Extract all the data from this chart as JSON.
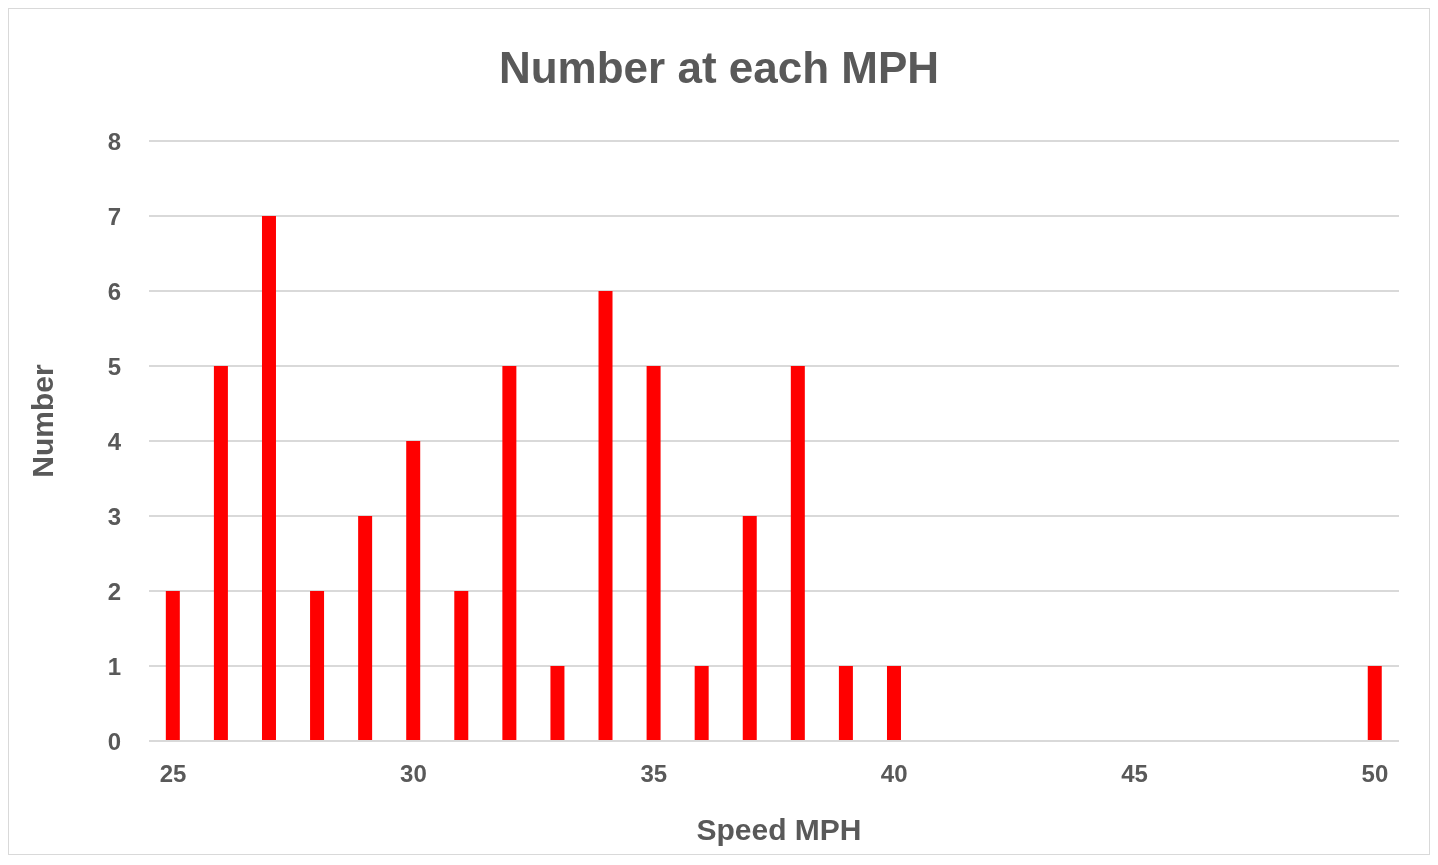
{
  "chart_data": {
    "type": "bar",
    "title": "Number at each MPH",
    "xlabel": "Speed MPH",
    "ylabel": "Number",
    "categories": [
      "25",
      null,
      null,
      null,
      null,
      "30",
      null,
      null,
      null,
      null,
      "35",
      null,
      null,
      null,
      null,
      "40",
      null,
      null,
      null,
      null,
      "45",
      null,
      null,
      null,
      null,
      "50"
    ],
    "values": [
      2,
      5,
      7,
      2,
      3,
      4,
      2,
      5,
      1,
      6,
      5,
      1,
      3,
      5,
      1,
      1,
      0,
      0,
      0,
      0,
      0,
      0,
      0,
      0,
      0,
      1
    ],
    "color": "#ff0000",
    "ylim": [
      0,
      8
    ],
    "yticks": [
      0,
      1,
      2,
      3,
      4,
      5,
      6,
      7,
      8
    ],
    "grid": "y"
  }
}
